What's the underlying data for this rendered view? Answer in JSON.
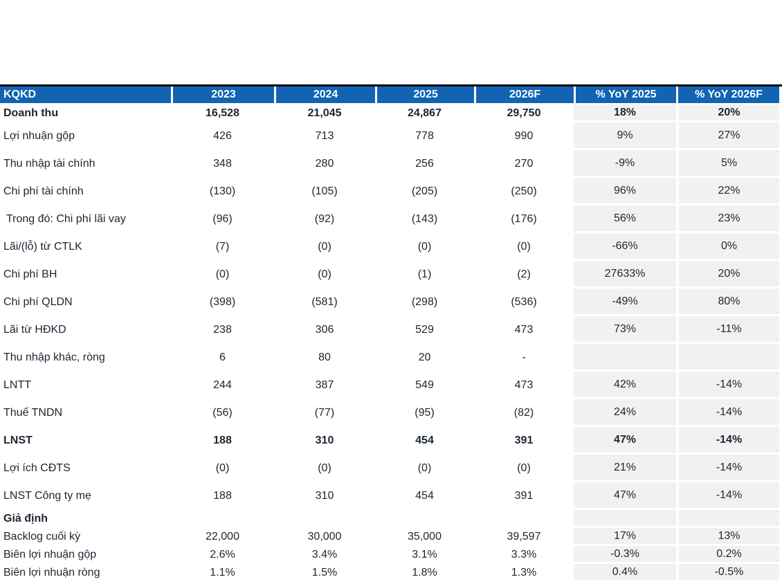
{
  "table": {
    "title": "KQKD",
    "top_border_color": "#000000",
    "header": {
      "bg": "#1263b2",
      "text_color": "#ffffff",
      "columns": [
        "KQKD",
        "2023",
        "2024",
        "2025",
        "2026F",
        "% YoY 2025",
        "% YoY 2026F"
      ]
    },
    "body": {
      "text_color": "#1b2531",
      "yoy_cell_bg": "#f1f1f1",
      "rows": [
        {
          "label": "Doanh thu",
          "values": [
            "16,528",
            "21,045",
            "24,867",
            "29,750",
            "18%",
            "20%"
          ],
          "bold": true,
          "first": true
        },
        {
          "label": "Lợi nhuận gộp",
          "values": [
            "426",
            "713",
            "778",
            "990",
            "9%",
            "27%"
          ]
        },
        {
          "label": "Thu nhập tài chính",
          "values": [
            "348",
            "280",
            "256",
            "270",
            "-9%",
            "5%"
          ]
        },
        {
          "label": "Chi phí tài chính",
          "values": [
            "(130)",
            "(105)",
            "(205)",
            "(250)",
            "96%",
            "22%"
          ]
        },
        {
          "label": "Trong đó: Chi phí lãi vay",
          "values": [
            "(96)",
            "(92)",
            "(143)",
            "(176)",
            "56%",
            "23%"
          ],
          "indent": true
        },
        {
          "label": "Lãi/(lỗ) từ CTLK",
          "values": [
            "(7)",
            "(0)",
            "(0)",
            "(0)",
            "-66%",
            "0%"
          ]
        },
        {
          "label": "Chi phí BH",
          "values": [
            "(0)",
            "(0)",
            "(1)",
            "(2)",
            "27633%",
            "20%"
          ]
        },
        {
          "label": "Chi phí QLDN",
          "values": [
            "(398)",
            "(581)",
            "(298)",
            "(536)",
            "-49%",
            "80%"
          ]
        },
        {
          "label": "Lãi từ HĐKD",
          "values": [
            "238",
            "306",
            "529",
            "473",
            "73%",
            "-11%"
          ]
        },
        {
          "label": "Thu nhập khác, ròng",
          "values": [
            "6",
            "80",
            "20",
            "-",
            "",
            ""
          ]
        },
        {
          "label": "LNTT",
          "values": [
            "244",
            "387",
            "549",
            "473",
            "42%",
            "-14%"
          ]
        },
        {
          "label": "Thuế TNDN",
          "values": [
            "(56)",
            "(77)",
            "(95)",
            "(82)",
            "24%",
            "-14%"
          ]
        },
        {
          "label": "LNST",
          "values": [
            "188",
            "310",
            "454",
            "391",
            "47%",
            "-14%"
          ],
          "bold": true
        },
        {
          "label": "Lợi ích CĐTS",
          "values": [
            "(0)",
            "(0)",
            "(0)",
            "(0)",
            "21%",
            "-14%"
          ]
        },
        {
          "label": "LNST Công ty mẹ",
          "values": [
            "188",
            "310",
            "454",
            "391",
            "47%",
            "-14%"
          ]
        },
        {
          "label": "Giả định",
          "values": [
            "",
            "",
            "",
            "",
            "",
            ""
          ],
          "bold_label": true,
          "short": true
        },
        {
          "label": "Backlog cuối kỳ",
          "values": [
            "22,000",
            "30,000",
            "35,000",
            "39,597",
            "17%",
            "13%"
          ],
          "short": true
        },
        {
          "label": "Biên lợi nhuận gộp",
          "values": [
            "2.6%",
            "3.4%",
            "3.1%",
            "3.3%",
            "-0.3%",
            "0.2%"
          ],
          "short": true
        },
        {
          "label": "Biên lợi nhuận ròng",
          "values": [
            "1.1%",
            "1.5%",
            "1.8%",
            "1.3%",
            "0.4%",
            "-0.5%"
          ],
          "short": true
        }
      ]
    }
  }
}
